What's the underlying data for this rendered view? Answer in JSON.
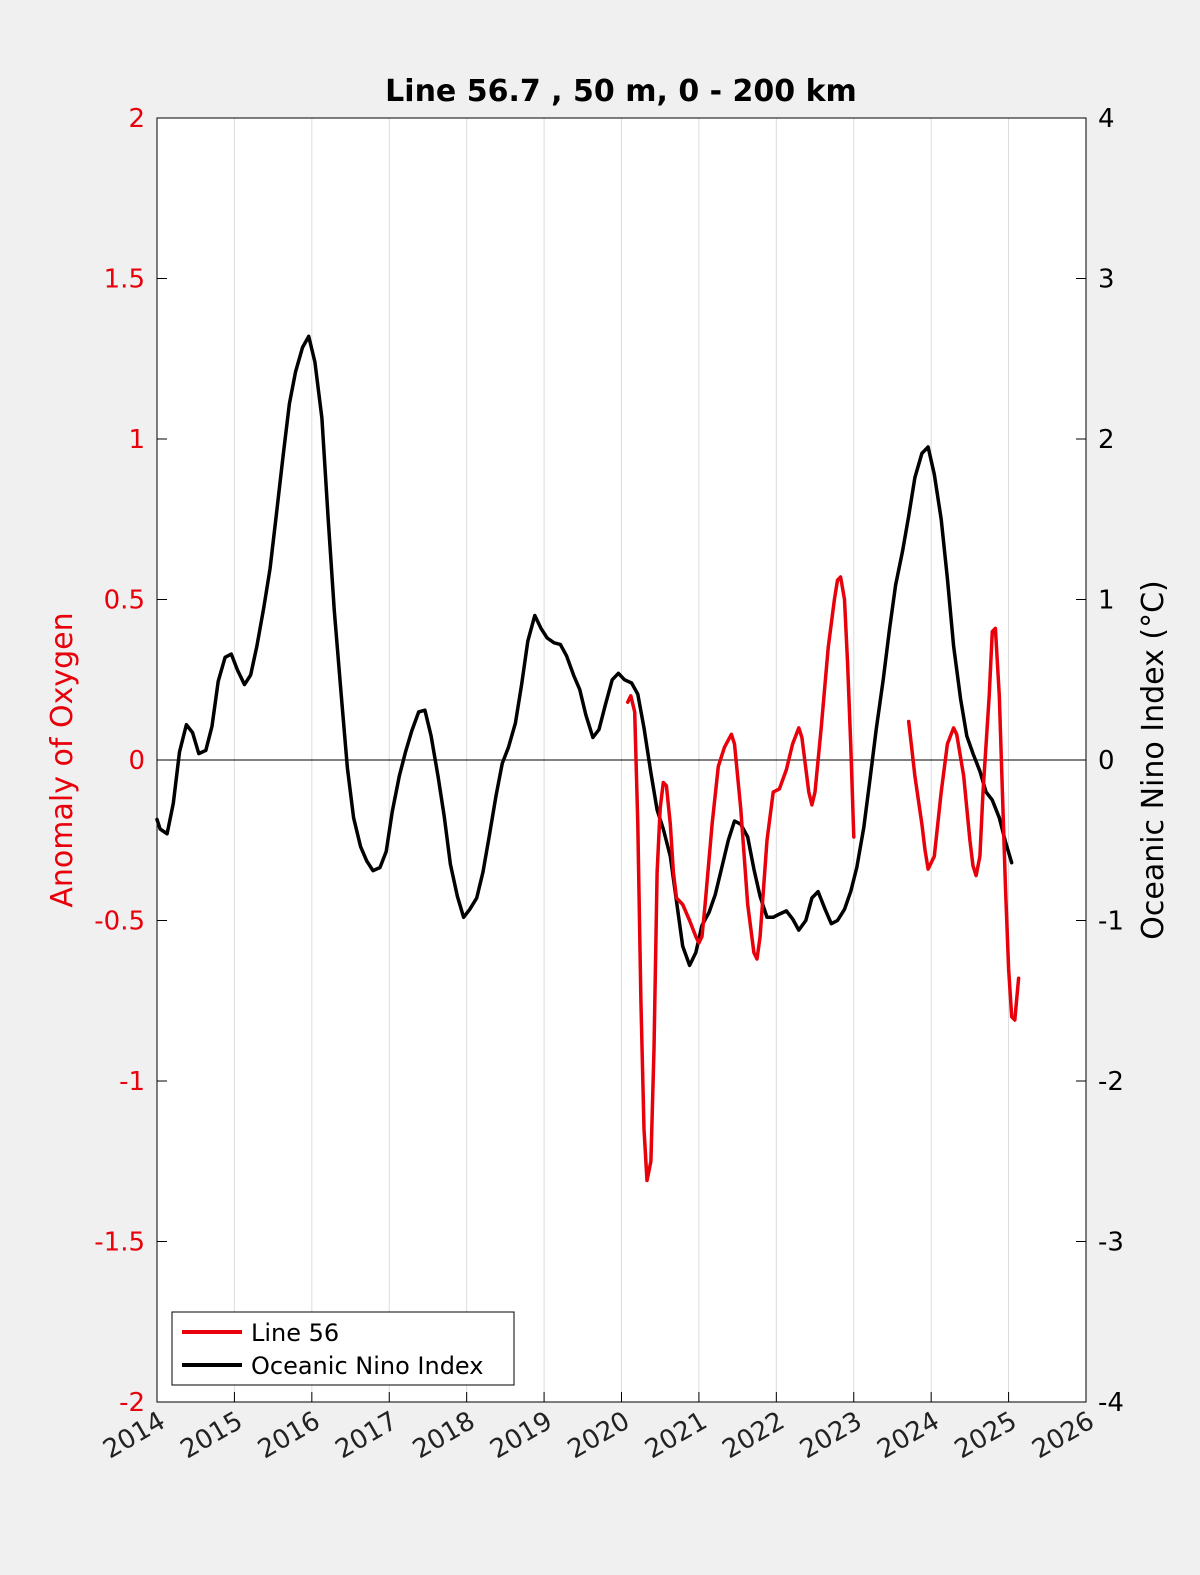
{
  "chart_data": {
    "type": "line",
    "title": "Line 56.7 , 50 m, 0 - 200 km",
    "xlabel": "",
    "ylabel_left": "Anomaly of Oxygen",
    "ylabel_right": "Oceanic Nino Index (°C)",
    "xlim": [
      2014,
      2026
    ],
    "ylim_left": [
      -2,
      2
    ],
    "ylim_right": [
      -4,
      4
    ],
    "x_ticks": [
      "2014",
      "2015",
      "2016",
      "2017",
      "2018",
      "2019",
      "2020",
      "2021",
      "2022",
      "2023",
      "2024",
      "2025",
      "2026"
    ],
    "y_ticks_left": [
      "2",
      "1.5",
      "1",
      "0.5",
      "0",
      "-0.5",
      "-1",
      "-1.5",
      "-2"
    ],
    "y_ticks_right": [
      "4",
      "3",
      "2",
      "1",
      "0",
      "-1",
      "-2",
      "-3",
      "-4"
    ],
    "grid": "vertical",
    "legend_position": "bottom-left",
    "colors": {
      "line56": "#e8000b",
      "oni": "#000000"
    },
    "series": [
      {
        "name": "Line 56",
        "axis": "left",
        "segments": [
          [
            [
              2020.08,
              0.18
            ],
            [
              2020.12,
              0.2
            ],
            [
              2020.17,
              0.15
            ],
            [
              2020.21,
              -0.2
            ],
            [
              2020.25,
              -0.75
            ],
            [
              2020.29,
              -1.15
            ],
            [
              2020.33,
              -1.31
            ],
            [
              2020.38,
              -1.25
            ],
            [
              2020.42,
              -0.9
            ],
            [
              2020.46,
              -0.35
            ],
            [
              2020.5,
              -0.15
            ],
            [
              2020.54,
              -0.07
            ],
            [
              2020.58,
              -0.08
            ],
            [
              2020.63,
              -0.2
            ],
            [
              2020.67,
              -0.35
            ],
            [
              2020.71,
              -0.43
            ],
            [
              2020.79,
              -0.45
            ],
            [
              2020.88,
              -0.5
            ],
            [
              2020.96,
              -0.55
            ],
            [
              2021.0,
              -0.57
            ],
            [
              2021.04,
              -0.55
            ],
            [
              2021.08,
              -0.45
            ],
            [
              2021.17,
              -0.2
            ],
            [
              2021.25,
              -0.02
            ],
            [
              2021.33,
              0.04
            ],
            [
              2021.42,
              0.08
            ],
            [
              2021.46,
              0.05
            ],
            [
              2021.54,
              -0.15
            ],
            [
              2021.63,
              -0.45
            ],
            [
              2021.71,
              -0.6
            ],
            [
              2021.75,
              -0.62
            ],
            [
              2021.79,
              -0.55
            ],
            [
              2021.88,
              -0.25
            ],
            [
              2021.96,
              -0.1
            ],
            [
              2022.04,
              -0.09
            ],
            [
              2022.13,
              -0.03
            ],
            [
              2022.21,
              0.05
            ],
            [
              2022.29,
              0.1
            ],
            [
              2022.33,
              0.07
            ],
            [
              2022.42,
              -0.1
            ],
            [
              2022.46,
              -0.14
            ],
            [
              2022.5,
              -0.1
            ],
            [
              2022.58,
              0.1
            ],
            [
              2022.67,
              0.35
            ],
            [
              2022.75,
              0.5
            ],
            [
              2022.79,
              0.56
            ],
            [
              2022.83,
              0.57
            ],
            [
              2022.88,
              0.5
            ],
            [
              2022.92,
              0.3
            ],
            [
              2022.96,
              0.05
            ],
            [
              2023.0,
              -0.24
            ]
          ],
          [
            [
              2023.71,
              0.12
            ],
            [
              2023.79,
              -0.05
            ],
            [
              2023.88,
              -0.2
            ],
            [
              2023.92,
              -0.28
            ],
            [
              2023.96,
              -0.34
            ],
            [
              2024.04,
              -0.3
            ],
            [
              2024.13,
              -0.1
            ],
            [
              2024.21,
              0.05
            ],
            [
              2024.29,
              0.1
            ],
            [
              2024.33,
              0.08
            ],
            [
              2024.42,
              -0.05
            ],
            [
              2024.5,
              -0.25
            ],
            [
              2024.54,
              -0.33
            ],
            [
              2024.58,
              -0.36
            ],
            [
              2024.63,
              -0.3
            ],
            [
              2024.67,
              -0.1
            ],
            [
              2024.75,
              0.2
            ],
            [
              2024.79,
              0.4
            ],
            [
              2024.83,
              0.41
            ],
            [
              2024.88,
              0.2
            ],
            [
              2024.92,
              -0.1
            ],
            [
              2024.96,
              -0.4
            ],
            [
              2025.0,
              -0.65
            ],
            [
              2025.04,
              -0.8
            ],
            [
              2025.08,
              -0.81
            ],
            [
              2025.13,
              -0.68
            ]
          ]
        ]
      },
      {
        "name": "Oceanic Nino Index",
        "axis": "right",
        "segments": [
          [
            [
              2014.0,
              -0.37
            ],
            [
              2014.04,
              -0.43
            ],
            [
              2014.13,
              -0.46
            ],
            [
              2014.21,
              -0.27
            ],
            [
              2014.29,
              0.05
            ],
            [
              2014.38,
              0.22
            ],
            [
              2014.46,
              0.17
            ],
            [
              2014.54,
              0.04
            ],
            [
              2014.63,
              0.06
            ],
            [
              2014.71,
              0.21
            ],
            [
              2014.79,
              0.49
            ],
            [
              2014.88,
              0.64
            ],
            [
              2014.96,
              0.66
            ],
            [
              2015.04,
              0.56
            ],
            [
              2015.13,
              0.47
            ],
            [
              2015.21,
              0.53
            ],
            [
              2015.29,
              0.71
            ],
            [
              2015.38,
              0.95
            ],
            [
              2015.46,
              1.19
            ],
            [
              2015.54,
              1.52
            ],
            [
              2015.63,
              1.9
            ],
            [
              2015.71,
              2.22
            ],
            [
              2015.79,
              2.42
            ],
            [
              2015.88,
              2.57
            ],
            [
              2015.96,
              2.64
            ],
            [
              2016.04,
              2.48
            ],
            [
              2016.13,
              2.13
            ],
            [
              2016.21,
              1.51
            ],
            [
              2016.29,
              0.93
            ],
            [
              2016.38,
              0.4
            ],
            [
              2016.46,
              -0.05
            ],
            [
              2016.54,
              -0.36
            ],
            [
              2016.63,
              -0.54
            ],
            [
              2016.71,
              -0.63
            ],
            [
              2016.79,
              -0.69
            ],
            [
              2016.88,
              -0.67
            ],
            [
              2016.96,
              -0.57
            ],
            [
              2017.04,
              -0.32
            ],
            [
              2017.13,
              -0.1
            ],
            [
              2017.21,
              0.05
            ],
            [
              2017.29,
              0.18
            ],
            [
              2017.38,
              0.3
            ],
            [
              2017.46,
              0.31
            ],
            [
              2017.54,
              0.15
            ],
            [
              2017.63,
              -0.1
            ],
            [
              2017.71,
              -0.35
            ],
            [
              2017.79,
              -0.65
            ],
            [
              2017.88,
              -0.85
            ],
            [
              2017.96,
              -0.98
            ],
            [
              2018.04,
              -0.93
            ],
            [
              2018.13,
              -0.86
            ],
            [
              2018.21,
              -0.7
            ],
            [
              2018.29,
              -0.48
            ],
            [
              2018.38,
              -0.22
            ],
            [
              2018.46,
              -0.02
            ],
            [
              2018.54,
              0.08
            ],
            [
              2018.63,
              0.23
            ],
            [
              2018.71,
              0.47
            ],
            [
              2018.79,
              0.74
            ],
            [
              2018.88,
              0.9
            ],
            [
              2018.96,
              0.82
            ],
            [
              2019.04,
              0.76
            ],
            [
              2019.13,
              0.73
            ],
            [
              2019.21,
              0.72
            ],
            [
              2019.29,
              0.65
            ],
            [
              2019.38,
              0.53
            ],
            [
              2019.46,
              0.44
            ],
            [
              2019.54,
              0.28
            ],
            [
              2019.63,
              0.14
            ],
            [
              2019.71,
              0.19
            ],
            [
              2019.79,
              0.34
            ],
            [
              2019.88,
              0.5
            ],
            [
              2019.96,
              0.54
            ],
            [
              2020.04,
              0.5
            ],
            [
              2020.13,
              0.48
            ],
            [
              2020.21,
              0.41
            ],
            [
              2020.29,
              0.2
            ],
            [
              2020.38,
              -0.08
            ],
            [
              2020.46,
              -0.31
            ],
            [
              2020.54,
              -0.43
            ],
            [
              2020.63,
              -0.6
            ],
            [
              2020.71,
              -0.88
            ],
            [
              2020.79,
              -1.16
            ],
            [
              2020.88,
              -1.28
            ],
            [
              2020.96,
              -1.2
            ],
            [
              2021.04,
              -1.03
            ],
            [
              2021.13,
              -0.95
            ],
            [
              2021.21,
              -0.84
            ],
            [
              2021.29,
              -0.68
            ],
            [
              2021.38,
              -0.5
            ],
            [
              2021.46,
              -0.38
            ],
            [
              2021.54,
              -0.4
            ],
            [
              2021.63,
              -0.48
            ],
            [
              2021.71,
              -0.68
            ],
            [
              2021.79,
              -0.85
            ],
            [
              2021.88,
              -0.98
            ],
            [
              2021.96,
              -0.98
            ],
            [
              2022.04,
              -0.96
            ],
            [
              2022.13,
              -0.94
            ],
            [
              2022.21,
              -0.99
            ],
            [
              2022.29,
              -1.06
            ],
            [
              2022.38,
              -1.0
            ],
            [
              2022.46,
              -0.86
            ],
            [
              2022.54,
              -0.82
            ],
            [
              2022.63,
              -0.93
            ],
            [
              2022.71,
              -1.02
            ],
            [
              2022.79,
              -1.0
            ],
            [
              2022.88,
              -0.93
            ],
            [
              2022.96,
              -0.82
            ],
            [
              2023.04,
              -0.67
            ],
            [
              2023.13,
              -0.42
            ],
            [
              2023.21,
              -0.12
            ],
            [
              2023.29,
              0.19
            ],
            [
              2023.38,
              0.5
            ],
            [
              2023.46,
              0.81
            ],
            [
              2023.54,
              1.09
            ],
            [
              2023.63,
              1.3
            ],
            [
              2023.71,
              1.52
            ],
            [
              2023.79,
              1.76
            ],
            [
              2023.88,
              1.91
            ],
            [
              2023.96,
              1.95
            ],
            [
              2024.04,
              1.78
            ],
            [
              2024.13,
              1.5
            ],
            [
              2024.21,
              1.13
            ],
            [
              2024.29,
              0.71
            ],
            [
              2024.38,
              0.38
            ],
            [
              2024.46,
              0.15
            ],
            [
              2024.54,
              0.04
            ],
            [
              2024.63,
              -0.07
            ],
            [
              2024.71,
              -0.2
            ],
            [
              2024.79,
              -0.25
            ],
            [
              2024.88,
              -0.36
            ],
            [
              2024.96,
              -0.51
            ],
            [
              2025.04,
              -0.64
            ]
          ]
        ]
      }
    ]
  }
}
